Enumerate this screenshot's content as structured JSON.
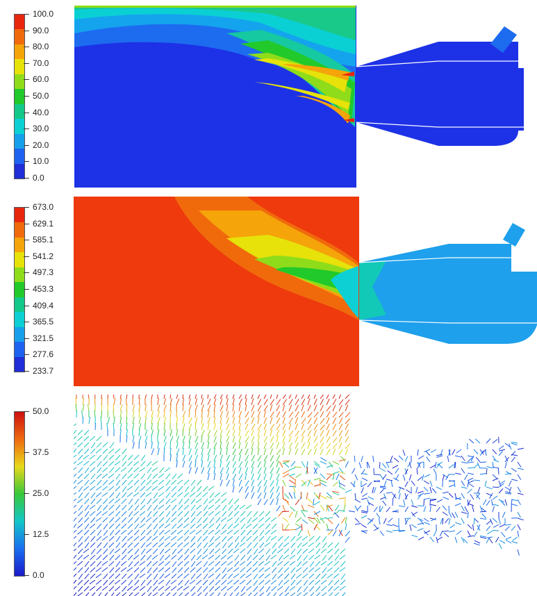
{
  "panels": [
    {
      "id": "panel-1",
      "legend": {
        "ticks": [
          "100.0",
          "90.0",
          "80.0",
          "70.0",
          "60.0",
          "50.0",
          "40.0",
          "30.0",
          "20.0",
          "10.0",
          "0.0"
        ],
        "colors": [
          "#e8260e",
          "#f06a0c",
          "#f5a40a",
          "#e6e20a",
          "#8fdc1a",
          "#22c92a",
          "#12c98a",
          "#0cd0d4",
          "#16a0ec",
          "#1d63f0",
          "#1f2ed6"
        ]
      }
    },
    {
      "id": "panel-2",
      "legend": {
        "ticks": [
          "673.0",
          "629.1",
          "585.1",
          "541.2",
          "497.3",
          "453.3",
          "409.4",
          "365.5",
          "321.5",
          "277.6",
          "233.7"
        ],
        "colors": [
          "#e8260e",
          "#f06a0c",
          "#f5a40a",
          "#e6e20a",
          "#8fdc1a",
          "#22c92a",
          "#12c98a",
          "#0cd0d4",
          "#16a0ec",
          "#1d63f0",
          "#1f2ed6"
        ]
      }
    },
    {
      "id": "panel-3",
      "legend": {
        "ticks": [
          "50.0",
          "37.5",
          "25.0",
          "12.5",
          "0.0"
        ],
        "gradient": [
          "#cc1010",
          "#ee6a10",
          "#e8d81a",
          "#39c83a",
          "#14c6c8",
          "#1a6ff0",
          "#1a1ac8"
        ]
      }
    }
  ]
}
